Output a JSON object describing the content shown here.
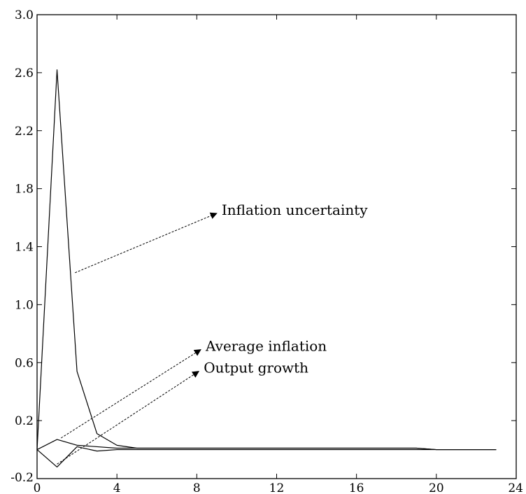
{
  "chart_data": {
    "type": "line",
    "title": "",
    "xlabel": "",
    "ylabel": "",
    "xlim": [
      0,
      24
    ],
    "ylim": [
      -0.2,
      3.0
    ],
    "grid": false,
    "legend": "none",
    "x_ticks": [
      "0",
      "4",
      "8",
      "12",
      "16",
      "20",
      "24"
    ],
    "y_ticks": [
      "-0.2",
      "0.2",
      "0.6",
      "1.0",
      "1.4",
      "1.8",
      "2.2",
      "2.6",
      "3.0"
    ],
    "x": [
      0,
      1,
      2,
      3,
      4,
      5,
      6,
      7,
      8,
      9,
      10,
      11,
      12,
      13,
      14,
      15,
      16,
      17,
      18,
      19,
      20,
      21,
      22,
      23
    ],
    "series": [
      {
        "values": [
          0,
          2.62,
          0.54,
          0.11,
          0.03,
          0.01,
          0.01,
          0.01,
          0.01,
          0.01,
          0.01,
          0.01,
          0.01,
          0.01,
          0.01,
          0.01,
          0.01,
          0.01,
          0.01,
          0.01,
          0.0,
          0.0,
          0.0,
          0.0
        ]
      },
      {
        "values": [
          0,
          0.07,
          0.03,
          0.02,
          0.01,
          0.01,
          0.01,
          0.01,
          0.01,
          0.01,
          0.01,
          0.01,
          0.01,
          0.01,
          0.01,
          0.01,
          0.01,
          0.01,
          0.01,
          0.01,
          0.0,
          0.0,
          0.0,
          0.0
        ]
      },
      {
        "values": [
          0,
          -0.12,
          0.02,
          -0.01,
          0.0,
          0.0,
          0.0,
          0.0,
          0.0,
          0.0,
          0.0,
          0.0,
          0.0,
          0.0,
          0.0,
          0.0,
          0.0,
          0.0,
          0.0,
          0.0,
          0.0,
          0.0,
          0.0,
          0.0
        ]
      }
    ],
    "annotations": [
      {
        "text": "Inflation uncertainty",
        "from": [
          1.9,
          1.22
        ],
        "to": [
          9.0,
          1.63
        ]
      },
      {
        "text": "Average inflation",
        "from": [
          1.2,
          0.08
        ],
        "to": [
          8.2,
          0.69
        ]
      },
      {
        "text": "Output growth",
        "from": [
          1.0,
          -0.1
        ],
        "to": [
          8.1,
          0.54
        ]
      }
    ]
  }
}
